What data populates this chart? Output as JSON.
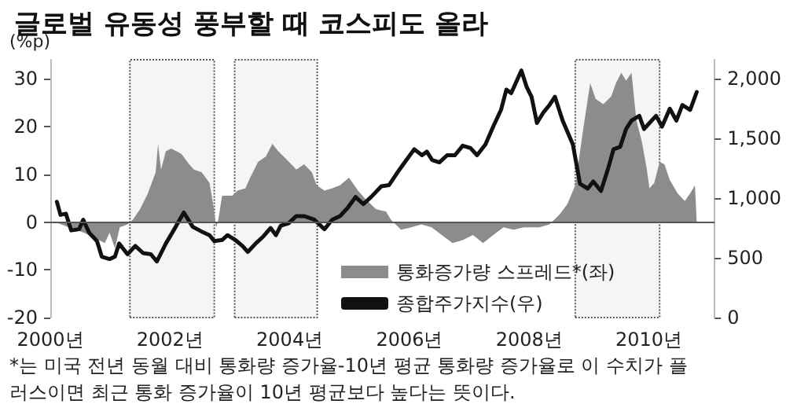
{
  "chart_data": {
    "type": "line",
    "title": "글로벌 유동성 풍부할 때 코스피도 올라",
    "ylabel": "(%p)",
    "annotations": [
      "*는 미국 전년 동월 대비 통화량 증가율-10년 평균 통화량 증가율로 이 수치가 플러스이면 최근 통화 증가율이 10년 평균보다 높다는 뜻이다."
    ],
    "xlim": [
      2000,
      2011.1
    ],
    "xticks": [
      {
        "value": 2000,
        "label": "2000년"
      },
      {
        "value": 2002,
        "label": "2002년"
      },
      {
        "value": 2004,
        "label": "2004년"
      },
      {
        "value": 2006,
        "label": "2006년"
      },
      {
        "value": 2008,
        "label": "2008년"
      },
      {
        "value": 2010,
        "label": "2010년"
      }
    ],
    "ylim": [
      -20,
      34
    ],
    "yticks": [
      -20,
      -10,
      0,
      10,
      20,
      30
    ],
    "y2lim": [
      0,
      2160
    ],
    "y2ticks": [
      {
        "value": 0,
        "label": "0"
      },
      {
        "value": 500,
        "label": "500"
      },
      {
        "value": 1000,
        "label": "1,000"
      },
      {
        "value": 1500,
        "label": "1,500"
      },
      {
        "value": 2000,
        "label": "2,000"
      }
    ],
    "legend": "bottom right",
    "marker": "none",
    "line_style": "solid",
    "ref_lines": [
      {
        "axis": "y",
        "value": 0,
        "color": "#555555"
      }
    ],
    "bands": [
      {
        "axis": "x",
        "from": 2001.33,
        "to": 2002.74,
        "color": "#555555"
      },
      {
        "axis": "x",
        "from": 2003.08,
        "to": 2004.46,
        "color": "#555555"
      },
      {
        "axis": "x",
        "from": 2008.77,
        "to": 2010.18,
        "color": "#555555"
      }
    ],
    "series": [
      {
        "name": "통화증가량 스프레드*(좌)",
        "type": "area",
        "color": "#8c8c8c",
        "x": [
          2000.14,
          2000.31,
          2000.56,
          2000.74,
          2000.91,
          2000.99,
          2001.08,
          2001.16,
          2001.29,
          2001.38,
          2001.5,
          2001.63,
          2001.76,
          2001.8,
          2001.85,
          2001.93,
          2002.02,
          2002.19,
          2002.32,
          2002.4,
          2002.53,
          2002.66,
          2002.72,
          2002.77,
          2002.8,
          2002.87,
          2003.04,
          2003.13,
          2003.26,
          2003.34,
          2003.47,
          2003.6,
          2003.71,
          2003.81,
          2003.94,
          2004.11,
          2004.24,
          2004.37,
          2004.45,
          2004.58,
          2004.71,
          2004.84,
          2004.99,
          2005.14,
          2005.26,
          2005.44,
          2005.61,
          2005.69,
          2005.86,
          2006.03,
          2006.2,
          2006.37,
          2006.54,
          2006.72,
          2006.89,
          2007.06,
          2007.23,
          2007.4,
          2007.57,
          2007.74,
          2007.91,
          2008.17,
          2008.34,
          2008.51,
          2008.64,
          2008.77,
          2008.9,
          2009.02,
          2009.11,
          2009.24,
          2009.37,
          2009.45,
          2009.54,
          2009.62,
          2009.71,
          2009.79,
          2009.88,
          2009.96,
          2010.01,
          2010.09,
          2010.18,
          2010.26,
          2010.35,
          2010.48,
          2010.6,
          2010.69,
          2010.77,
          2010.8
        ],
        "values": [
          -0.3,
          -1.1,
          -2.2,
          -3.3,
          -4.4,
          -2.2,
          -5.5,
          -1.1,
          -0.5,
          0.5,
          2.7,
          6,
          10.4,
          16.4,
          11,
          14.8,
          15.4,
          14.3,
          12.1,
          11,
          10.4,
          8.2,
          3.8,
          -1.1,
          0,
          5.5,
          5.5,
          6.6,
          7.1,
          9.3,
          12.6,
          13.7,
          16.4,
          14.8,
          13.2,
          11,
          12.1,
          10.4,
          7.7,
          6.6,
          7.1,
          7.7,
          9.3,
          6.6,
          4.9,
          2.7,
          2.2,
          0.5,
          -1.6,
          -1.1,
          -0.5,
          -1.1,
          -2.7,
          -4.4,
          -3.8,
          -2.7,
          -4.4,
          -2.7,
          -1.1,
          -1.6,
          -1.1,
          -1.1,
          -0.5,
          1.6,
          3.8,
          7.7,
          19.2,
          29.1,
          25.8,
          24.7,
          26.3,
          29.1,
          31.3,
          29.6,
          31.3,
          21.4,
          17,
          11.5,
          7.1,
          8.2,
          12.6,
          12.1,
          8.8,
          6,
          4.4,
          6,
          7.7,
          0
        ]
      },
      {
        "name": "종합주가지수(우)",
        "axis": "y2",
        "color": "#111111",
        "x": [
          2000.11,
          2000.17,
          2000.26,
          2000.35,
          2000.48,
          2000.55,
          2000.65,
          2000.78,
          2000.86,
          2000.99,
          2001.08,
          2001.15,
          2001.29,
          2001.42,
          2001.55,
          2001.68,
          2001.78,
          2001.93,
          2002.06,
          2002.23,
          2002.38,
          2002.53,
          2002.66,
          2002.74,
          2002.87,
          2002.96,
          2003.09,
          2003.21,
          2003.3,
          2003.43,
          2003.56,
          2003.68,
          2003.77,
          2003.85,
          2003.98,
          2004.11,
          2004.24,
          2004.41,
          2004.58,
          2004.71,
          2004.84,
          2004.97,
          2005.1,
          2005.23,
          2005.36,
          2005.53,
          2005.66,
          2005.82,
          2005.95,
          2006.08,
          2006.21,
          2006.29,
          2006.38,
          2006.5,
          2006.63,
          2006.76,
          2006.89,
          2007.02,
          2007.13,
          2007.27,
          2007.4,
          2007.53,
          2007.62,
          2007.7,
          2007.87,
          2007.96,
          2008.04,
          2008.13,
          2008.24,
          2008.34,
          2008.43,
          2008.56,
          2008.73,
          2008.85,
          2008.98,
          2009.07,
          2009.2,
          2009.32,
          2009.41,
          2009.52,
          2009.62,
          2009.71,
          2009.84,
          2009.92,
          2010.01,
          2010.12,
          2010.22,
          2010.35,
          2010.46,
          2010.56,
          2010.69,
          2010.8
        ],
        "values": [
          970,
          860,
          870,
          730,
          740,
          820,
          710,
          640,
          510,
          490,
          510,
          620,
          530,
          600,
          540,
          530,
          470,
          620,
          730,
          880,
          760,
          720,
          690,
          640,
          650,
          690,
          650,
          600,
          550,
          620,
          680,
          750,
          690,
          770,
          790,
          850,
          850,
          820,
          740,
          820,
          850,
          920,
          1010,
          950,
          1010,
          1100,
          1110,
          1230,
          1320,
          1410,
          1360,
          1390,
          1320,
          1300,
          1360,
          1360,
          1440,
          1420,
          1360,
          1450,
          1600,
          1740,
          1910,
          1880,
          2070,
          1930,
          1850,
          1630,
          1720,
          1780,
          1850,
          1650,
          1450,
          1120,
          1080,
          1140,
          1060,
          1250,
          1410,
          1430,
          1580,
          1650,
          1690,
          1580,
          1630,
          1690,
          1600,
          1750,
          1650,
          1780,
          1740,
          1890
        ]
      }
    ]
  }
}
